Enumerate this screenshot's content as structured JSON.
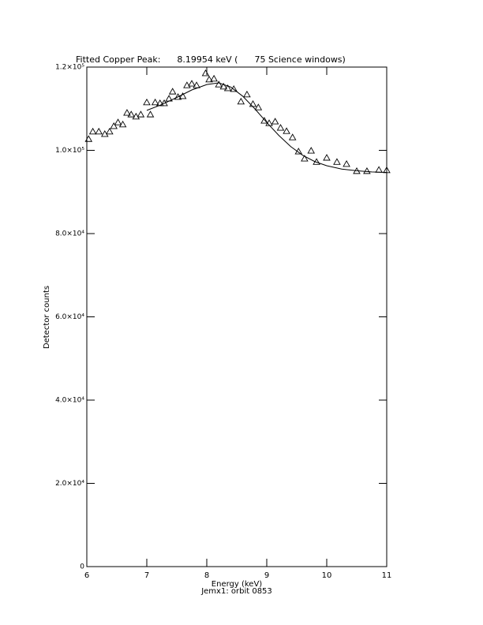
{
  "chart_data": {
    "type": "scatter",
    "title": "Fitted Copper Peak:      8.19954 keV (      75 Science windows)",
    "x_label": "Energy (keV)",
    "subtitle": "Jemx1: orbit 0853",
    "y_label": "Detector counts",
    "xlim": [
      6,
      11
    ],
    "xticks": [
      6,
      7,
      8,
      9,
      10,
      11
    ],
    "ylim": [
      0,
      120000
    ],
    "yticks": [
      0,
      {
        "value": 20000,
        "label": "2.0×10⁴"
      },
      {
        "value": 40000,
        "label": "4.0×10⁴"
      },
      {
        "value": 60000,
        "label": "6.0×10⁴"
      },
      {
        "value": 80000,
        "label": "8.0×10⁴"
      },
      {
        "value": 100000,
        "label": "1.0×10⁵"
      },
      {
        "value": 120000,
        "label": "1.2×10⁵"
      }
    ],
    "series": [
      {
        "style": "markers",
        "color": "#000000",
        "x": [
          6.03,
          6.1,
          6.2,
          6.3,
          6.38,
          6.45,
          6.52,
          6.6,
          6.67,
          6.74,
          6.82,
          6.9,
          7.0,
          7.06,
          7.14,
          7.22,
          7.29,
          7.37,
          7.43,
          7.52,
          7.6,
          7.67,
          7.75,
          7.83,
          7.98,
          8.04,
          8.12,
          8.2,
          8.28,
          8.35,
          8.45,
          8.57,
          8.67,
          8.77,
          8.86,
          8.96,
          9.04,
          9.14,
          9.23,
          9.33,
          9.43,
          9.53,
          9.63,
          9.74,
          9.83,
          10.0,
          10.17,
          10.33,
          10.5,
          10.67,
          10.87,
          11.0
        ],
        "values": [
          102700,
          104500,
          104500,
          103900,
          104500,
          105800,
          106700,
          106200,
          109000,
          108600,
          108100,
          108600,
          111500,
          108600,
          111500,
          111300,
          111300,
          112400,
          114100,
          112800,
          113000,
          115600,
          116000,
          115600,
          118500,
          117000,
          117200,
          115800,
          115300,
          114900,
          114700,
          111700,
          113400,
          111100,
          110300,
          107100,
          106500,
          106900,
          105400,
          104600,
          103100,
          99700,
          98000,
          99900,
          97200,
          98200,
          97200,
          96700,
          95000,
          95000,
          95300,
          95200
        ]
      },
      {
        "style": "line",
        "color": "#000000",
        "x": [
          7.0,
          7.25,
          7.5,
          7.75,
          8.0,
          8.2,
          8.4,
          8.6,
          8.8,
          9.0,
          9.2,
          9.4,
          9.6,
          9.8,
          10.0,
          10.25,
          10.5,
          10.75,
          11.0
        ],
        "values": [
          109600,
          111000,
          112700,
          114500,
          115800,
          116200,
          115200,
          113000,
          110000,
          106700,
          103600,
          100900,
          98800,
          97300,
          96300,
          95500,
          95100,
          94800,
          94700
        ]
      }
    ]
  }
}
